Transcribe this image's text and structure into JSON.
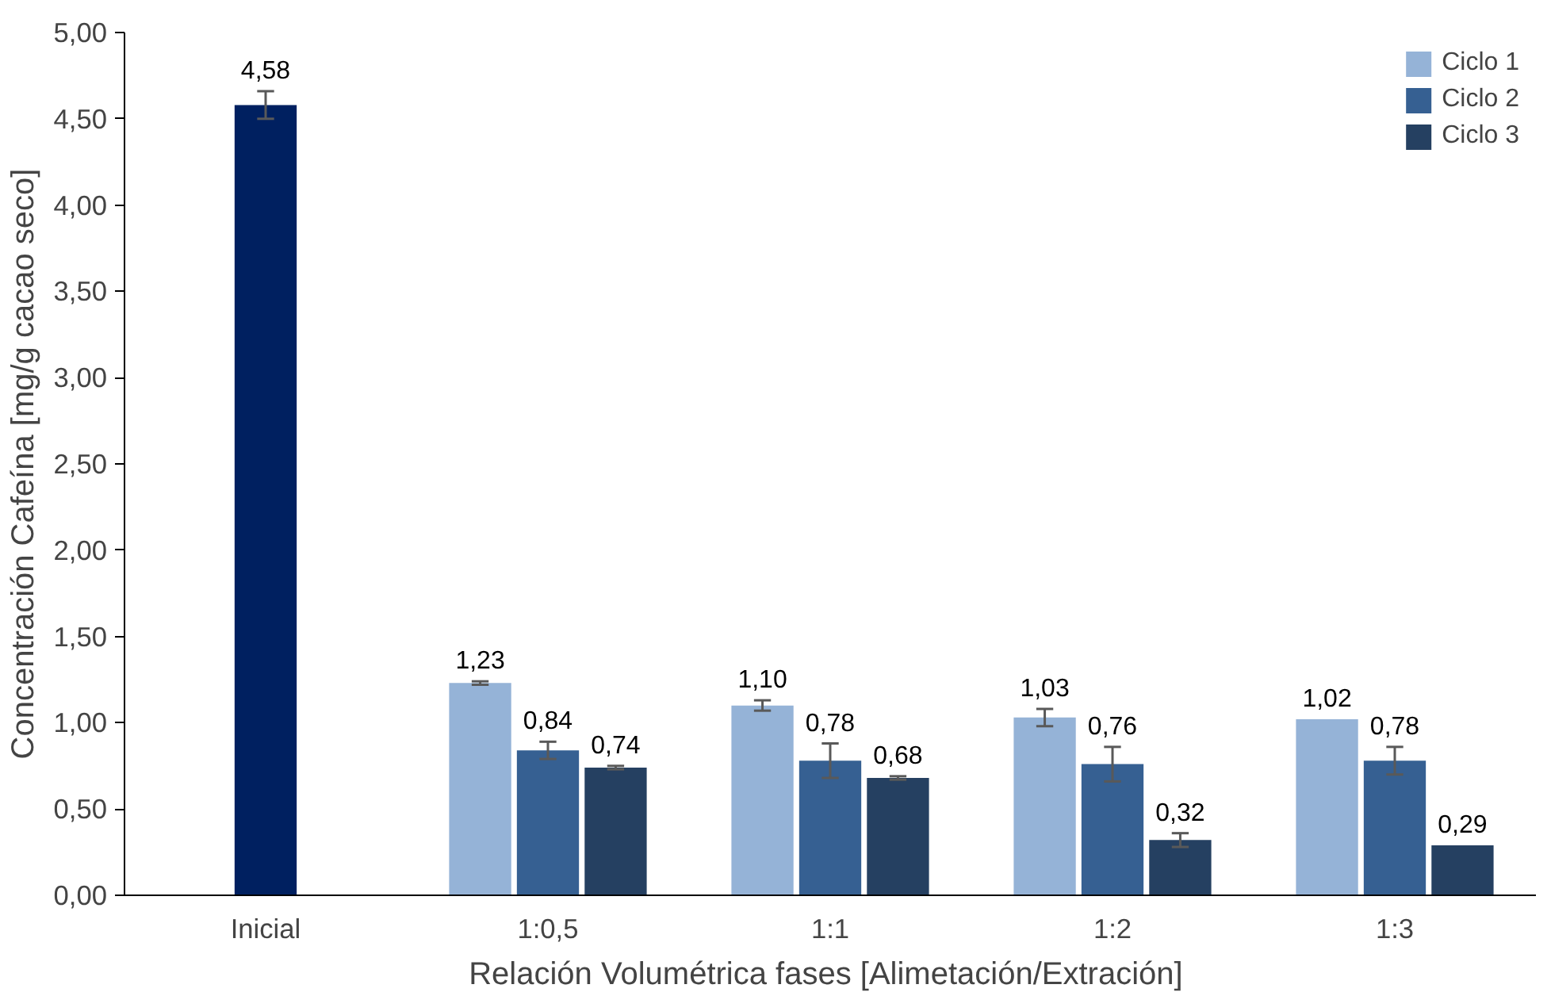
{
  "chart_data": {
    "type": "bar",
    "xlabel": "Relación Volumétrica fases  [Alimetación/Extración]",
    "ylabel": "Concentración Cafeína [mg/g cacao seco]",
    "categories": [
      "Inicial",
      "1:0,5",
      "1:1",
      "1:2",
      "1:3"
    ],
    "series": [
      {
        "color": "#002060",
        "values": [
          4.58,
          null,
          null,
          null,
          null
        ],
        "errors": [
          0.08,
          null,
          null,
          null,
          null
        ],
        "value_labels": [
          "4,58",
          null,
          null,
          null,
          null
        ]
      },
      {
        "name": "Ciclo 1",
        "color": "#95b3d7",
        "values": [
          null,
          1.23,
          1.1,
          1.03,
          1.02
        ],
        "errors": [
          null,
          0.01,
          0.03,
          0.05,
          null
        ],
        "value_labels": [
          null,
          "1,23",
          "1,10",
          "1,03",
          "1,02"
        ]
      },
      {
        "name": "Ciclo 2",
        "color": "#366092",
        "values": [
          null,
          0.84,
          0.78,
          0.76,
          0.78
        ],
        "errors": [
          null,
          0.05,
          0.1,
          0.1,
          0.08
        ],
        "value_labels": [
          null,
          "0,84",
          "0,78",
          "0,76",
          "0,78"
        ]
      },
      {
        "name": "Ciclo 3",
        "color": "#254061",
        "values": [
          null,
          0.74,
          0.68,
          0.32,
          0.29
        ],
        "errors": [
          null,
          0.01,
          0.01,
          0.04,
          null
        ],
        "value_labels": [
          null,
          "0,74",
          "0,68",
          "0,32",
          "0,29"
        ]
      }
    ],
    "ylim": [
      0,
      5
    ],
    "yticks": [
      {
        "value": 0,
        "label": "0,00"
      },
      {
        "value": 0.5,
        "label": "0,50"
      },
      {
        "value": 1,
        "label": "1,00"
      },
      {
        "value": 1.5,
        "label": "1,50"
      },
      {
        "value": 2,
        "label": "2,00"
      },
      {
        "value": 2.5,
        "label": "2,50"
      },
      {
        "value": 3,
        "label": "3,00"
      },
      {
        "value": 3.5,
        "label": "3,50"
      },
      {
        "value": 4,
        "label": "4,00"
      },
      {
        "value": 4.5,
        "label": "4,50"
      },
      {
        "value": 5,
        "label": "5,00"
      }
    ],
    "grid": false,
    "legend": "top right"
  }
}
